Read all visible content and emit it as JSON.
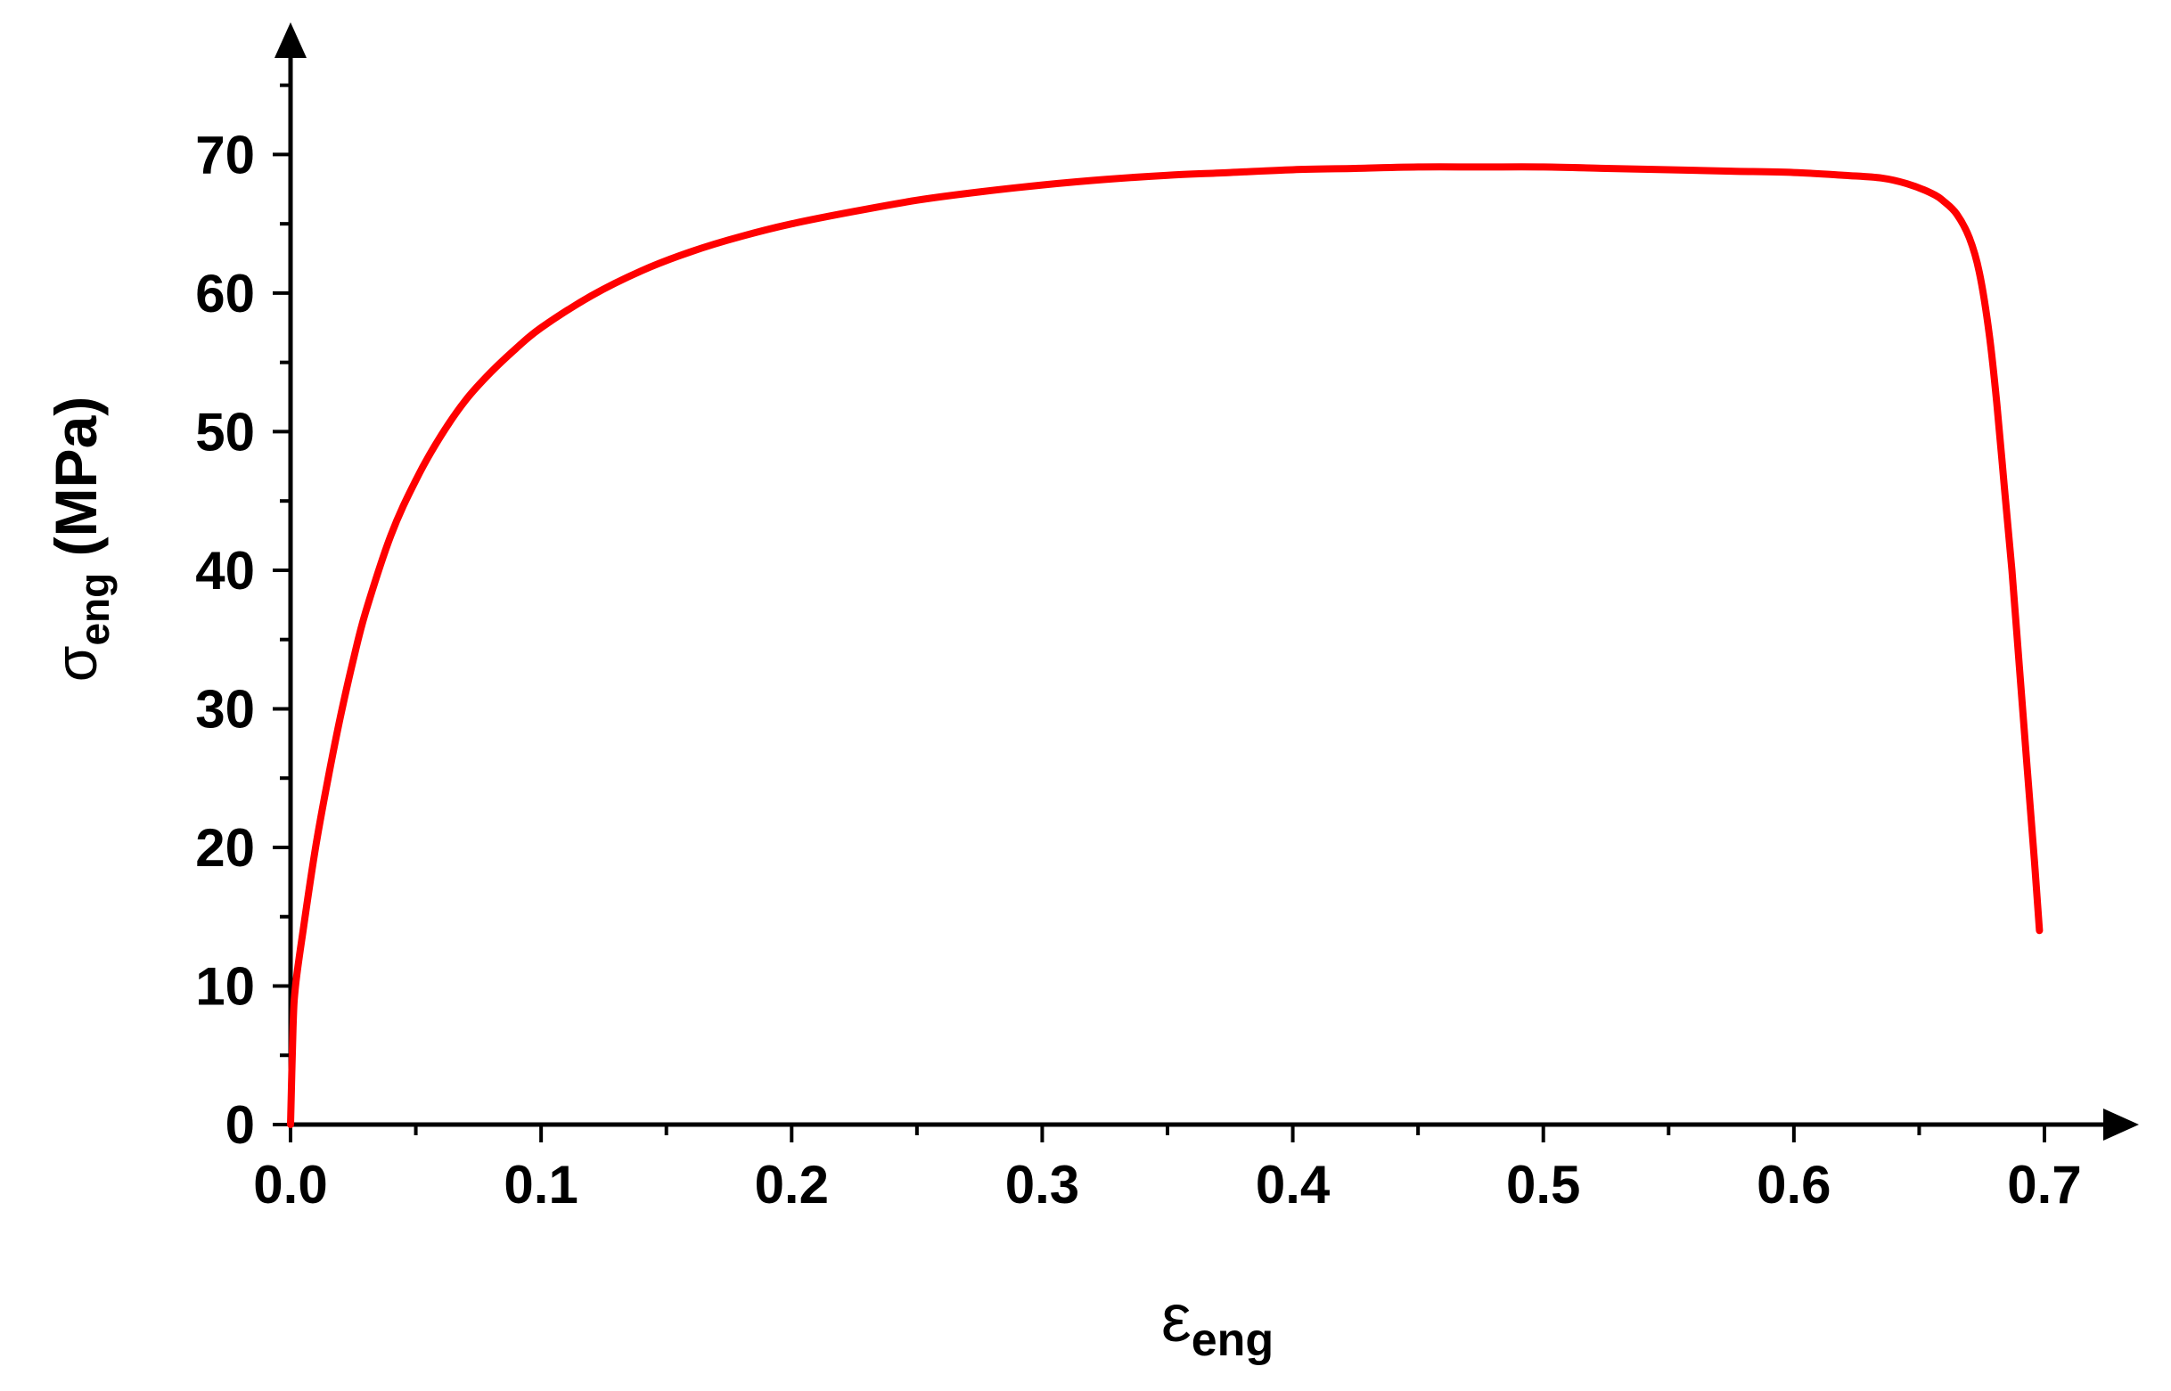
{
  "chart_data": {
    "type": "line",
    "title": "",
    "xlabel": {
      "symbol": "ε",
      "subscript": "eng"
    },
    "ylabel": {
      "symbol": "σ",
      "subscript": "eng",
      "unit": "(MPa)"
    },
    "xlim": [
      0,
      0.7
    ],
    "ylim": [
      0,
      78
    ],
    "x_ticks": [
      0.0,
      0.1,
      0.2,
      0.3,
      0.4,
      0.5,
      0.6,
      0.7
    ],
    "x_tick_labels": [
      "0.0",
      "0.1",
      "0.2",
      "0.3",
      "0.4",
      "0.5",
      "0.6",
      "0.7"
    ],
    "y_ticks": [
      0,
      10,
      20,
      30,
      40,
      50,
      60,
      70
    ],
    "y_tick_labels": [
      "0",
      "10",
      "20",
      "30",
      "40",
      "50",
      "60",
      "70"
    ],
    "grid": false,
    "series": [
      {
        "color": "#ff0000",
        "x": [
          0.0,
          0.001,
          0.002,
          0.005,
          0.01,
          0.015,
          0.02,
          0.025,
          0.03,
          0.04,
          0.05,
          0.06,
          0.07,
          0.08,
          0.09,
          0.1,
          0.12,
          0.14,
          0.16,
          0.18,
          0.2,
          0.225,
          0.25,
          0.275,
          0.3,
          0.325,
          0.35,
          0.375,
          0.4,
          0.425,
          0.45,
          0.475,
          0.5,
          0.525,
          0.55,
          0.575,
          0.6,
          0.62,
          0.635,
          0.645,
          0.655,
          0.66,
          0.665,
          0.67,
          0.674,
          0.678,
          0.681,
          0.684,
          0.687,
          0.69,
          0.693,
          0.696,
          0.698
        ],
        "y": [
          0.0,
          7.0,
          10.0,
          14.0,
          20.0,
          25.0,
          29.5,
          33.5,
          37.0,
          42.5,
          46.5,
          49.7,
          52.3,
          54.3,
          56.0,
          57.5,
          59.8,
          61.6,
          63.0,
          64.1,
          65.0,
          65.9,
          66.7,
          67.3,
          67.8,
          68.2,
          68.5,
          68.7,
          68.9,
          69.0,
          69.1,
          69.1,
          69.1,
          69.0,
          68.9,
          68.8,
          68.7,
          68.5,
          68.3,
          67.9,
          67.2,
          66.6,
          65.7,
          64.0,
          61.5,
          57.0,
          52.0,
          46.0,
          40.0,
          33.0,
          26.0,
          19.0,
          14.0
        ]
      }
    ]
  }
}
